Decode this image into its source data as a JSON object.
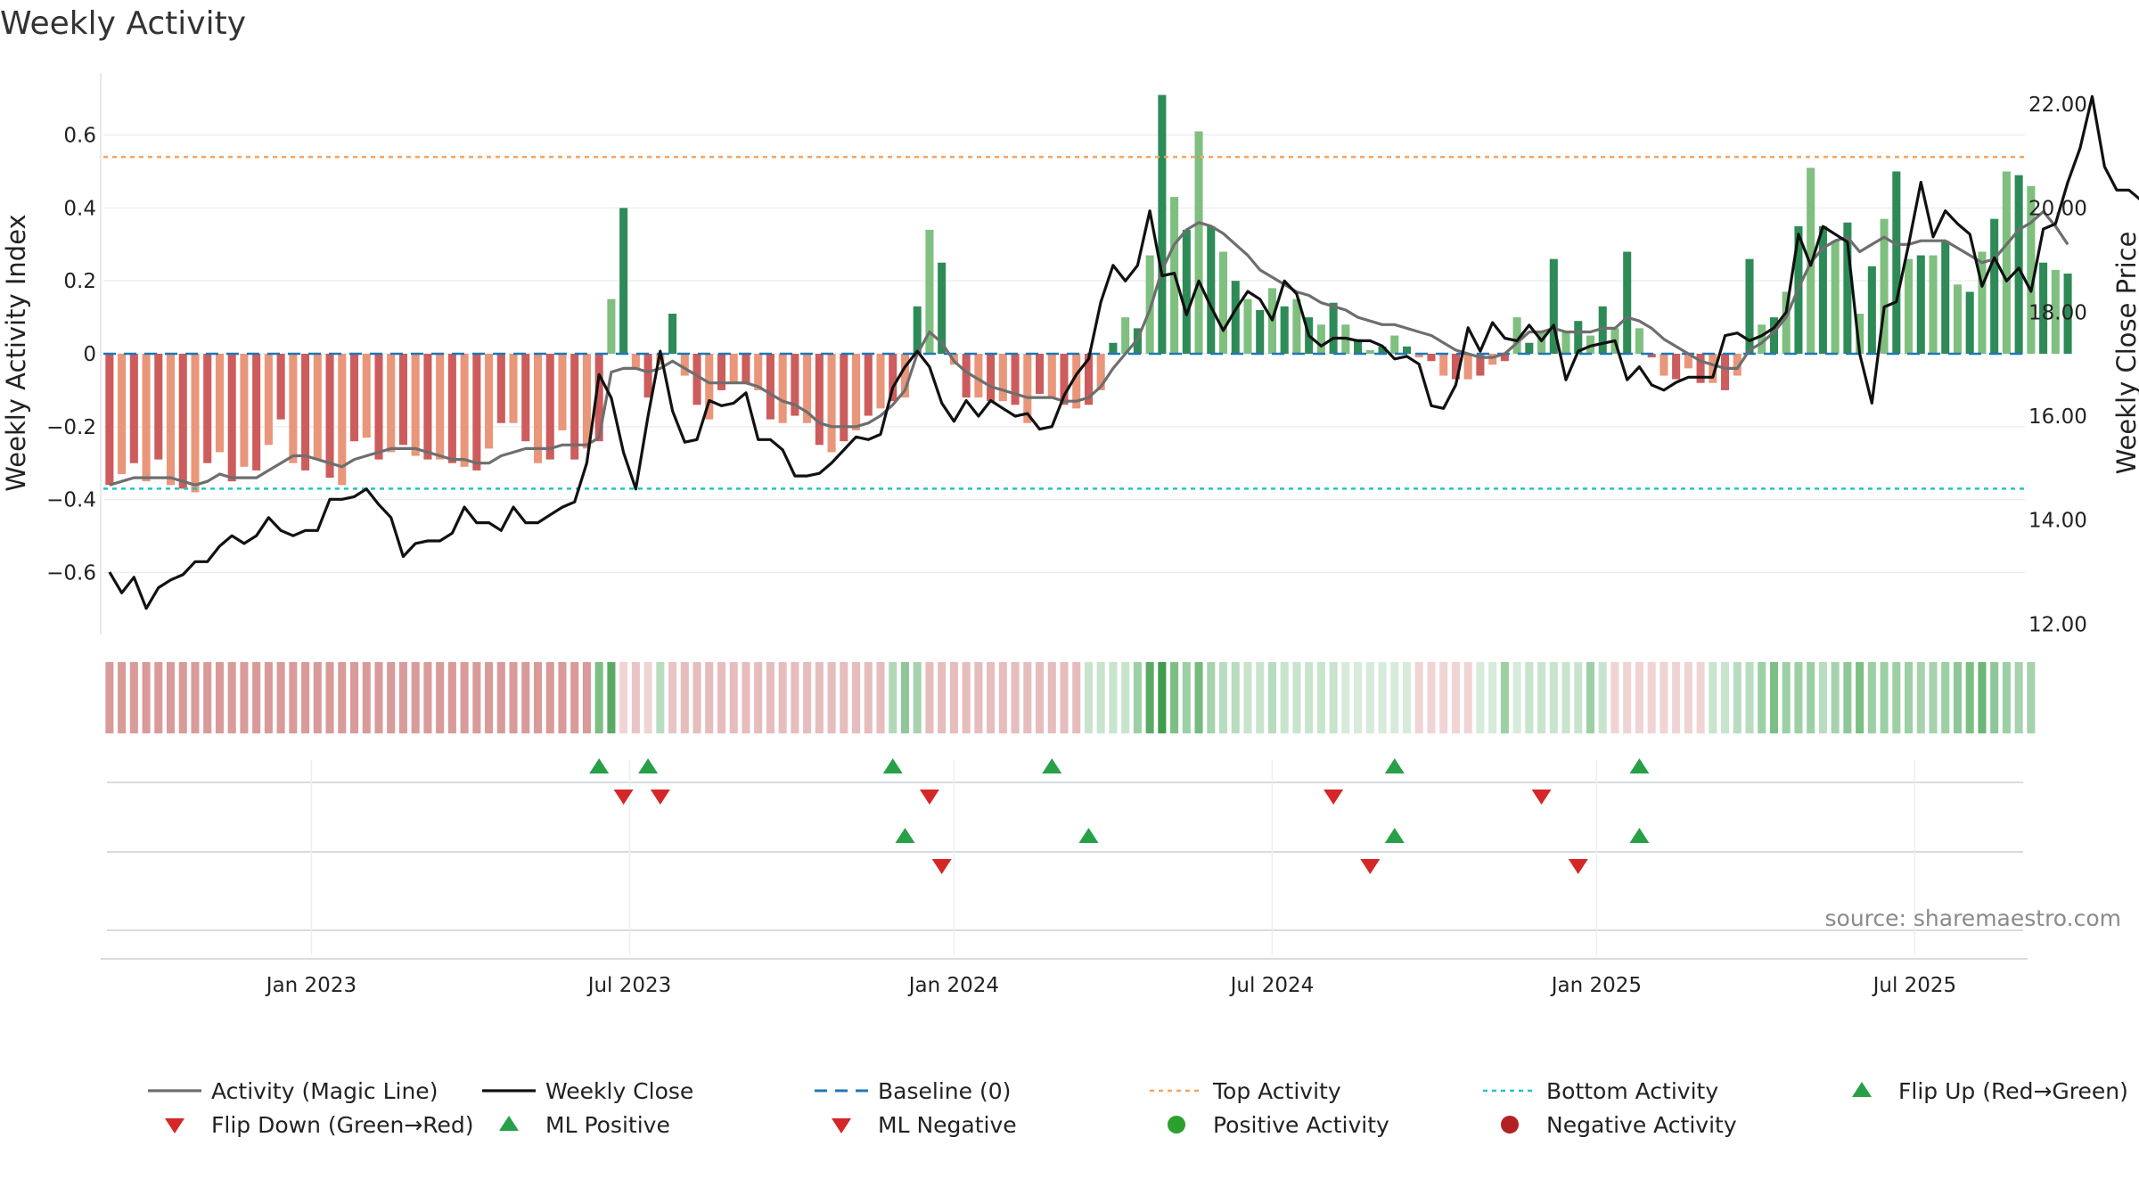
{
  "chart_data": {
    "type": "bar",
    "title": "Weekly Activity",
    "source": "source: sharemaestro.com",
    "ylabel": "Weekly Activity Index",
    "y2label": "Weekly Close Price",
    "ylim": [
      -0.77,
      0.77
    ],
    "y2lim": [
      11.8,
      22.6
    ],
    "yticks": [
      -0.6,
      -0.4,
      -0.2,
      0,
      0.2,
      0.4,
      0.6
    ],
    "ytick_labels": [
      "−0.6",
      "−0.4",
      "−0.2",
      "0",
      "0.2",
      "0.4",
      "0.6"
    ],
    "y2ticks": [
      12,
      14,
      16,
      18,
      20,
      22
    ],
    "y2tick_labels": [
      "12.00",
      "14.00",
      "16.00",
      "18.00",
      "20.00",
      "22.00"
    ],
    "x_start": "2022-09-05",
    "x_end": "2025-09-29",
    "weeks": 157,
    "xticks": [
      {
        "label": "Jan 2023",
        "week": 17
      },
      {
        "label": "Jul 2023",
        "week": 43
      },
      {
        "label": "Jan 2024",
        "week": 69.5
      },
      {
        "label": "Jul 2024",
        "week": 95.5
      },
      {
        "label": "Jan 2025",
        "week": 122
      },
      {
        "label": "Jul 2025",
        "week": 148
      }
    ],
    "top_activity": 0.54,
    "bottom_activity": -0.37,
    "activity": [
      -0.36,
      -0.33,
      -0.3,
      -0.35,
      -0.29,
      -0.36,
      -0.37,
      -0.38,
      -0.3,
      -0.27,
      -0.35,
      -0.31,
      -0.32,
      -0.25,
      -0.18,
      -0.3,
      -0.32,
      -0.29,
      -0.34,
      -0.36,
      -0.24,
      -0.23,
      -0.29,
      -0.27,
      -0.25,
      -0.28,
      -0.29,
      -0.29,
      -0.3,
      -0.31,
      -0.32,
      -0.26,
      -0.19,
      -0.19,
      -0.24,
      -0.3,
      -0.29,
      -0.21,
      -0.29,
      -0.26,
      -0.24,
      0.15,
      0.4,
      -0.04,
      -0.12,
      -0.03,
      0.11,
      -0.06,
      -0.14,
      -0.18,
      -0.1,
      -0.08,
      -0.08,
      -0.1,
      -0.18,
      -0.19,
      -0.17,
      -0.19,
      -0.25,
      -0.27,
      -0.24,
      -0.21,
      -0.17,
      -0.15,
      -0.13,
      -0.12,
      0.13,
      0.34,
      0.25,
      -0.03,
      -0.12,
      -0.12,
      -0.13,
      -0.13,
      -0.14,
      -0.19,
      -0.11,
      -0.12,
      -0.14,
      -0.15,
      -0.14,
      -0.1,
      0.03,
      0.1,
      0.07,
      0.27,
      0.71,
      0.43,
      0.34,
      0.61,
      0.35,
      0.28,
      0.2,
      0.15,
      0.12,
      0.18,
      0.13,
      0.15,
      0.1,
      0.08,
      0.14,
      0.08,
      0.04,
      0.01,
      0.02,
      0.05,
      0.02,
      -0.01,
      -0.02,
      -0.06,
      -0.07,
      -0.07,
      -0.06,
      -0.03,
      -0.02,
      0.1,
      0.03,
      0.06,
      0.26,
      0.06,
      0.09,
      0.05,
      0.13,
      0.07,
      0.28,
      0.07,
      -0.01,
      -0.06,
      -0.07,
      -0.04,
      -0.08,
      -0.08,
      -0.1,
      -0.06,
      0.26,
      0.08,
      0.1,
      0.17,
      0.35,
      0.51,
      0.35,
      0.31,
      0.36,
      0.11,
      0.24,
      0.37,
      0.5,
      0.26,
      0.27,
      0.27,
      0.31,
      0.19,
      0.17,
      0.28,
      0.37,
      0.5,
      0.49,
      0.46,
      0.25,
      0.23,
      0.22
    ],
    "magic_line": [
      -0.36,
      -0.35,
      -0.34,
      -0.34,
      -0.34,
      -0.34,
      -0.35,
      -0.36,
      -0.35,
      -0.33,
      -0.34,
      -0.34,
      -0.34,
      -0.32,
      -0.3,
      -0.28,
      -0.28,
      -0.29,
      -0.3,
      -0.31,
      -0.29,
      -0.28,
      -0.27,
      -0.26,
      -0.26,
      -0.26,
      -0.27,
      -0.28,
      -0.29,
      -0.29,
      -0.3,
      -0.3,
      -0.28,
      -0.27,
      -0.26,
      -0.26,
      -0.26,
      -0.25,
      -0.25,
      -0.25,
      -0.23,
      -0.05,
      -0.04,
      -0.04,
      -0.05,
      -0.04,
      -0.02,
      -0.04,
      -0.06,
      -0.08,
      -0.08,
      -0.08,
      -0.08,
      -0.09,
      -0.11,
      -0.13,
      -0.14,
      -0.16,
      -0.19,
      -0.2,
      -0.2,
      -0.2,
      -0.19,
      -0.17,
      -0.14,
      -0.1,
      0.0,
      0.06,
      0.03,
      -0.02,
      -0.05,
      -0.07,
      -0.09,
      -0.1,
      -0.11,
      -0.12,
      -0.12,
      -0.12,
      -0.13,
      -0.13,
      -0.12,
      -0.09,
      -0.04,
      0.0,
      0.04,
      0.12,
      0.23,
      0.3,
      0.34,
      0.36,
      0.35,
      0.33,
      0.3,
      0.27,
      0.23,
      0.21,
      0.19,
      0.17,
      0.16,
      0.14,
      0.13,
      0.12,
      0.1,
      0.09,
      0.08,
      0.08,
      0.07,
      0.06,
      0.05,
      0.03,
      0.01,
      0.0,
      -0.01,
      -0.01,
      0.0,
      0.03,
      0.06,
      0.06,
      0.07,
      0.06,
      0.06,
      0.06,
      0.07,
      0.07,
      0.1,
      0.09,
      0.07,
      0.04,
      0.02,
      0.0,
      -0.02,
      -0.03,
      -0.04,
      -0.04,
      0.01,
      0.03,
      0.06,
      0.1,
      0.18,
      0.25,
      0.29,
      0.31,
      0.32,
      0.28,
      0.3,
      0.32,
      0.3,
      0.3,
      0.31,
      0.31,
      0.31,
      0.29,
      0.27,
      0.25,
      0.26,
      0.3,
      0.34,
      0.36,
      0.39,
      0.35,
      0.3
    ],
    "weekly_close": [
      13.0,
      12.6,
      12.9,
      12.3,
      12.7,
      12.85,
      12.95,
      13.2,
      13.2,
      13.5,
      13.7,
      13.55,
      13.7,
      14.05,
      13.8,
      13.7,
      13.8,
      13.8,
      14.4,
      14.4,
      14.45,
      14.6,
      14.3,
      14.05,
      13.3,
      13.55,
      13.6,
      13.6,
      13.75,
      14.25,
      13.95,
      13.95,
      13.8,
      14.25,
      13.95,
      13.95,
      14.1,
      14.25,
      14.35,
      15.1,
      16.8,
      16.35,
      15.3,
      14.6,
      16.0,
      17.25,
      16.1,
      15.5,
      15.55,
      16.3,
      16.2,
      16.25,
      16.45,
      15.55,
      15.55,
      15.35,
      14.85,
      14.85,
      14.9,
      15.1,
      15.35,
      15.6,
      15.55,
      15.65,
      16.55,
      16.95,
      17.25,
      16.95,
      16.25,
      15.9,
      16.3,
      16.0,
      16.3,
      16.15,
      16.0,
      16.05,
      15.75,
      15.8,
      16.4,
      16.8,
      17.1,
      18.2,
      18.9,
      18.6,
      18.9,
      19.95,
      18.7,
      18.75,
      17.95,
      18.6,
      18.1,
      17.65,
      18.05,
      18.4,
      18.25,
      17.85,
      18.6,
      18.35,
      17.55,
      17.35,
      17.5,
      17.5,
      17.45,
      17.45,
      17.35,
      17.1,
      17.15,
      17.0,
      16.2,
      16.15,
      16.6,
      17.7,
      17.25,
      17.8,
      17.5,
      17.45,
      17.75,
      17.45,
      17.75,
      16.7,
      17.25,
      17.35,
      17.4,
      17.45,
      16.7,
      16.95,
      16.6,
      16.5,
      16.65,
      16.75,
      16.75,
      16.75,
      17.55,
      17.6,
      17.45,
      17.55,
      17.7,
      18.0,
      19.5,
      18.9,
      19.65,
      19.5,
      19.35,
      17.2,
      16.25,
      18.1,
      18.2,
      19.3,
      20.5,
      19.45,
      19.95,
      19.7,
      19.5,
      18.5,
      19.05,
      18.6,
      18.85,
      18.4,
      19.6,
      19.7,
      20.5,
      21.15,
      22.15,
      20.8,
      20.35,
      20.35,
      20.15
    ],
    "strip_colors": [
      "#d99a9a",
      "#d99a9a",
      "#d99a9a",
      "#d99a9a",
      "#d99a9a",
      "#d99a9a",
      "#d99a9a",
      "#d99a9a",
      "#d99a9a",
      "#d99a9a",
      "#d99a9a",
      "#d99a9a",
      "#d99a9a",
      "#d99a9a",
      "#d99a9a",
      "#d99a9a",
      "#d99a9a",
      "#d99a9a",
      "#d99a9a",
      "#d99a9a",
      "#d99a9a",
      "#d99a9a",
      "#d99a9a",
      "#d99a9a",
      "#d99a9a",
      "#d99a9a",
      "#d99a9a",
      "#d99a9a",
      "#d99a9a",
      "#d99a9a",
      "#d99a9a",
      "#d99a9a",
      "#d99a9a",
      "#d99a9a",
      "#d99a9a",
      "#d99a9a",
      "#d99a9a",
      "#d99a9a",
      "#d99a9a",
      "#d99a9a",
      "#7cbf84",
      "#5aaa66",
      "#f0d4d4",
      "#e8c4c4",
      "#f0d4d4",
      "#b8dcbf",
      "#e8c4c4",
      "#e6bcbc",
      "#e6bcbc",
      "#e6bcbc",
      "#e6bcbc",
      "#e6bcbc",
      "#e6bcbc",
      "#e6bcbc",
      "#e6bcbc",
      "#e6bcbc",
      "#e6bcbc",
      "#e6bcbc",
      "#e6bcbc",
      "#e6bcbc",
      "#e6bcbc",
      "#e6bcbc",
      "#e6bcbc",
      "#e6bcbc",
      "#b0d8b7",
      "#8fc79a",
      "#a6d2ad",
      "#e6bcbc",
      "#e6bcbc",
      "#e6bcbc",
      "#e6bcbc",
      "#e6bcbc",
      "#e6bcbc",
      "#e6bcbc",
      "#e6bcbc",
      "#e6bcbc",
      "#e6bcbc",
      "#e6bcbc",
      "#e6bcbc",
      "#e6bcbc",
      "#c8e4cd",
      "#c8e4cd",
      "#c8e4cd",
      "#c8e4cd",
      "#9cd0a4",
      "#5aaa66",
      "#3e9c4c",
      "#7cbf84",
      "#9cd0a4",
      "#74bb7e",
      "#a6d2ad",
      "#b8dcbf",
      "#b8dcbf",
      "#c8e4cd",
      "#c8e4cd",
      "#b8dcbf",
      "#c8e4cd",
      "#c8e4cd",
      "#c8e4cd",
      "#c8e4cd",
      "#c8e4cd",
      "#d6ebda",
      "#d6ebda",
      "#d6ebda",
      "#d6ebda",
      "#d6ebda",
      "#d6ebda",
      "#f0d4d4",
      "#f0d4d4",
      "#f0d4d4",
      "#f0d4d4",
      "#f0d4d4",
      "#d6ebda",
      "#d6ebda",
      "#9cd0a4",
      "#d6ebda",
      "#c8e4cd",
      "#c8e4cd",
      "#c8e4cd",
      "#c8e4cd",
      "#c8e4cd",
      "#9cd0a4",
      "#c8e4cd",
      "#f0d4d4",
      "#f0d4d4",
      "#f0d4d4",
      "#f0d4d4",
      "#f0d4d4",
      "#f0d4d4",
      "#f0d4d4",
      "#f0d4d4",
      "#c8e4cd",
      "#c8e4cd",
      "#b8dcbf",
      "#b8dcbf",
      "#9cd0a4",
      "#7cbf84",
      "#9cd0a4",
      "#9cd0a4",
      "#9cd0a4",
      "#b8dcbf",
      "#a6d2ad",
      "#8fc79a",
      "#7cbf84",
      "#9cd0a4",
      "#9cd0a4",
      "#9cd0a4",
      "#9cd0a4",
      "#a6d2ad",
      "#a6d2ad",
      "#9cd0a4",
      "#8fc79a",
      "#7cbf84",
      "#6cb777",
      "#8fc79a",
      "#9cd0a4",
      "#a6d2ad",
      "#a6d2ad"
    ],
    "flip_up_weeks": [
      40,
      44,
      64,
      77,
      105,
      125
    ],
    "flip_down_weeks": [
      42,
      45,
      67,
      100,
      117
    ],
    "ml_positive_weeks": [
      65,
      80,
      105,
      125
    ],
    "ml_negative_weeks": [
      68,
      103,
      120
    ],
    "colors": {
      "positive_dark": "#2e8b57",
      "positive_light": "#7fbf7f",
      "negative_dark": "#cd5c5c",
      "negative_light": "#e9967a",
      "magic_line": "#6e6e6e",
      "weekly_close": "#111111",
      "baseline": "#1f77b4",
      "top_activity": "#f4a460",
      "bottom_activity": "#20c4c4",
      "flip_up": "#27a048",
      "flip_down": "#d62728",
      "positive_activity": "#2ca02c",
      "negative_activity": "#b22222"
    },
    "legend": [
      {
        "label": "Activity (Magic Line)",
        "symbol": "line-solid-gray"
      },
      {
        "label": "Weekly Close",
        "symbol": "line-solid-black"
      },
      {
        "label": "Baseline (0)",
        "symbol": "line-dash-blue"
      },
      {
        "label": "Top Activity",
        "symbol": "line-dot-orange"
      },
      {
        "label": "Bottom Activity",
        "symbol": "line-dot-cyan"
      },
      {
        "label": "Flip Up (Red→Green)",
        "symbol": "triangle-up-green"
      },
      {
        "label": "Flip Down (Green→Red)",
        "symbol": "triangle-down-red"
      },
      {
        "label": "ML Positive",
        "symbol": "triangle-up-green"
      },
      {
        "label": "ML Negative",
        "symbol": "triangle-down-red"
      },
      {
        "label": "Positive Activity",
        "symbol": "dot-green"
      },
      {
        "label": "Negative Activity",
        "symbol": "dot-red"
      }
    ]
  }
}
